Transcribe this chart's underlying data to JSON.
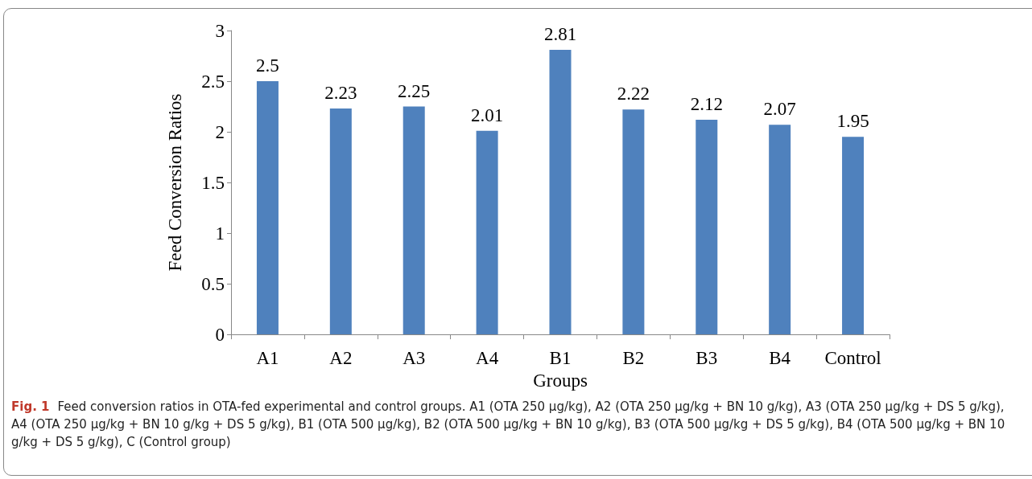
{
  "chart_data": {
    "type": "bar",
    "xlabel": "Groups",
    "ylabel": "Feed Conversion Ratios",
    "categories": [
      "A1",
      "A2",
      "A3",
      "A4",
      "B1",
      "B2",
      "B3",
      "B4",
      "Control"
    ],
    "values": [
      2.5,
      2.23,
      2.25,
      2.01,
      2.81,
      2.22,
      2.12,
      2.07,
      1.95
    ],
    "color": "#4f81bd",
    "ylim": [
      0,
      3
    ],
    "yticks": [
      0,
      0.5,
      1,
      1.5,
      2,
      2.5,
      3
    ],
    "grid": false,
    "data_labels": true,
    "annotations": [
      "Fig. 1",
      "Feed conversion ratios in OTA-fed experimental and control groups. A1 (OTA 250 µg/kg), A2 (OTA 250 µg/kg + BN 10 g/kg), A3 (OTA 250 µg/kg + DS 5 g/kg), A4 (OTA 250 µg/kg + BN 10 g/kg + DS 5 g/kg), B1 (OTA 500 µg/kg), B2 (OTA 500 µg/kg + BN 10 g/kg), B3 (OTA 500 µg/kg + DS 5 g/kg), B4 (OTA 500 µg/kg + BN 10 g/kg + DS 5 g/kg), C (Control group)"
    ]
  }
}
